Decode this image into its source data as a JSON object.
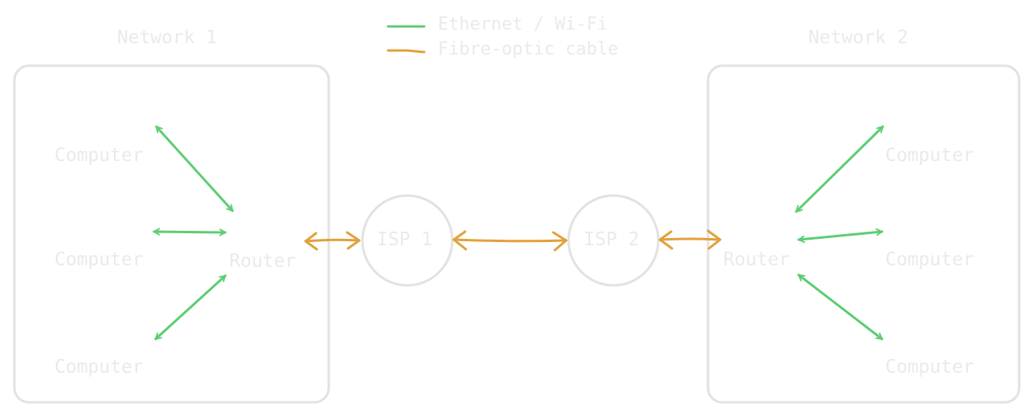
{
  "legend": {
    "items": [
      {
        "label": "Ethernet / Wi-Fi",
        "color": "#5ccd73"
      },
      {
        "label": "Fibre-optic cable",
        "color": "#e2a13a"
      }
    ]
  },
  "networks": [
    {
      "title": "Network 1",
      "router": "Router",
      "computers": [
        "Computer",
        "Computer",
        "Computer"
      ]
    },
    {
      "title": "Network 2",
      "router": "Router",
      "computers": [
        "Computer",
        "Computer",
        "Computer"
      ]
    }
  ],
  "isps": [
    {
      "label": "ISP 1"
    },
    {
      "label": "ISP 2"
    }
  ],
  "colors": {
    "ethernet": "#5ccd73",
    "fibre": "#e2a13a",
    "outline": "#e2e2e2",
    "text": "#eaeaea"
  }
}
